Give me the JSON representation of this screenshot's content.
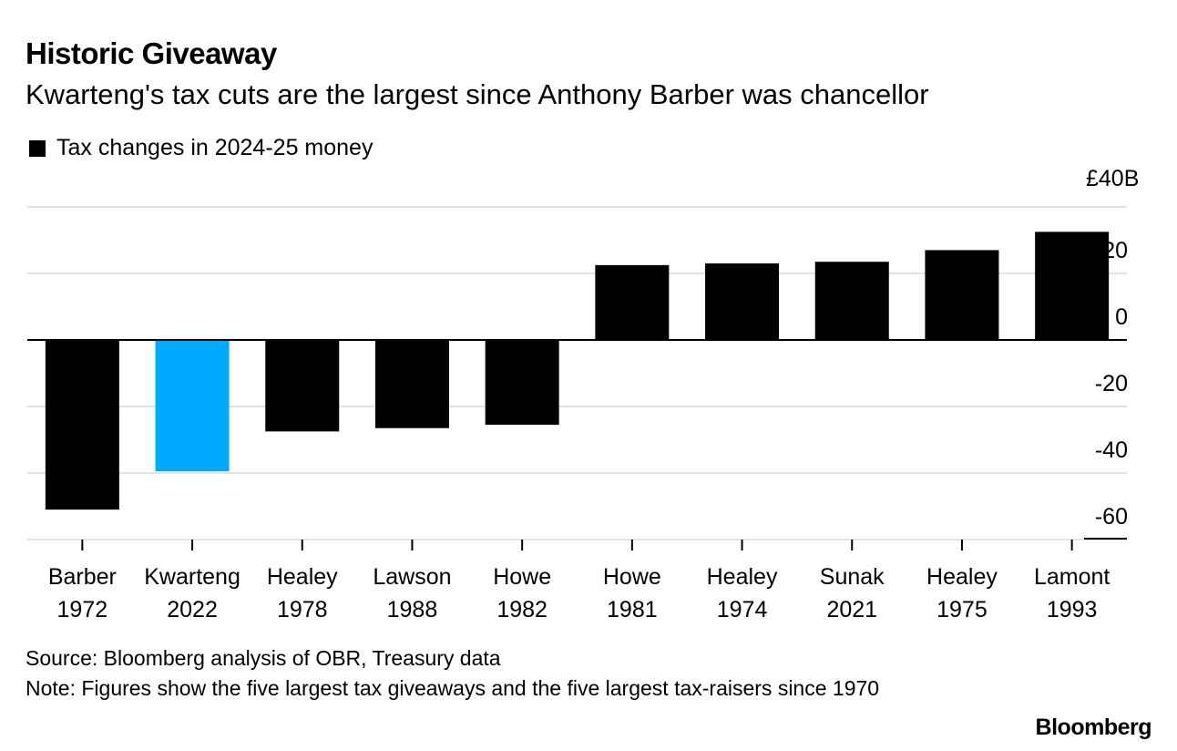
{
  "header": {
    "title": "Historic Giveaway",
    "subtitle": "Kwarteng's tax cuts are the largest since Anthony Barber was chancellor"
  },
  "legend": {
    "label": "Tax changes in 2024-25 money"
  },
  "axis": {
    "unit_label": "£40B"
  },
  "footer": {
    "source": "Source: Bloomberg analysis of OBR, Treasury data",
    "note": "Note: Figures show the five largest tax giveaways and the five largest tax-raisers since 1970",
    "brand": "Bloomberg"
  },
  "colors": {
    "bar": "#000000",
    "highlight": "#00aaff",
    "grid": "#e3e3e3"
  },
  "chart_data": {
    "type": "bar",
    "title": "Historic Giveaway",
    "subtitle": "Kwarteng's tax cuts are the largest since Anthony Barber was chancellor",
    "legend": [
      "Tax changes in 2024-25 money"
    ],
    "legend_position": "top-left",
    "ylabel": "£B",
    "ylim": [
      -60,
      40
    ],
    "yticks": [
      40,
      20,
      0,
      -20,
      -40,
      -60
    ],
    "ytick_labels": [
      "£40B",
      "20",
      "0",
      "-20",
      "-40",
      "-60"
    ],
    "grid": true,
    "categories": [
      [
        "Barber",
        "1972"
      ],
      [
        "Kwarteng",
        "2022"
      ],
      [
        "Healey",
        "1978"
      ],
      [
        "Lawson",
        "1988"
      ],
      [
        "Howe",
        "1982"
      ],
      [
        "Howe",
        "1981"
      ],
      [
        "Healey",
        "1974"
      ],
      [
        "Sunak",
        "2021"
      ],
      [
        "Healey",
        "1975"
      ],
      [
        "Lamont",
        "1993"
      ]
    ],
    "values": [
      -51,
      -39.5,
      -27.5,
      -26.5,
      -25.5,
      22.5,
      23,
      23.5,
      27,
      32.5
    ],
    "highlight_index": 1
  }
}
